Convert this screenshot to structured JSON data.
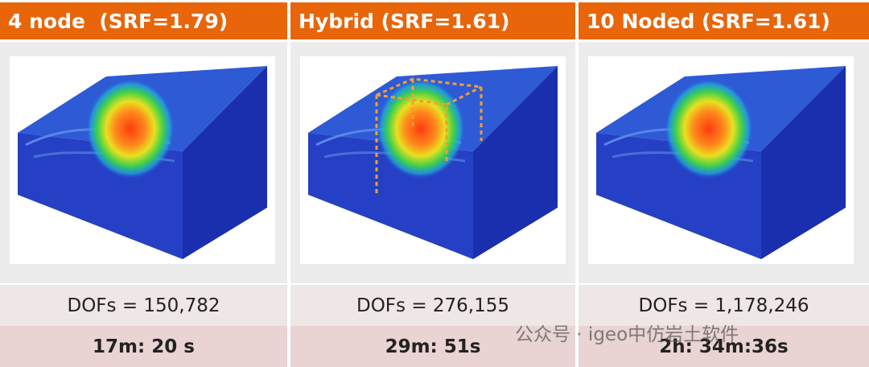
{
  "columns": [
    {
      "header": "4 node  (SRF=1.79)",
      "dofs": "DOFs = 150,782",
      "time": "17m: 20 s"
    },
    {
      "header": "Hybrid (SRF=1.61)",
      "dofs": "DOFs = 276,155",
      "time": "29m: 51s"
    },
    {
      "header": "10 Noded (SRF=1.61)",
      "dofs": "DOFs = 1,178,246",
      "time": "2h: 34m:36s"
    }
  ],
  "watermark": "公众号 · igeo中仿岩土软件"
}
